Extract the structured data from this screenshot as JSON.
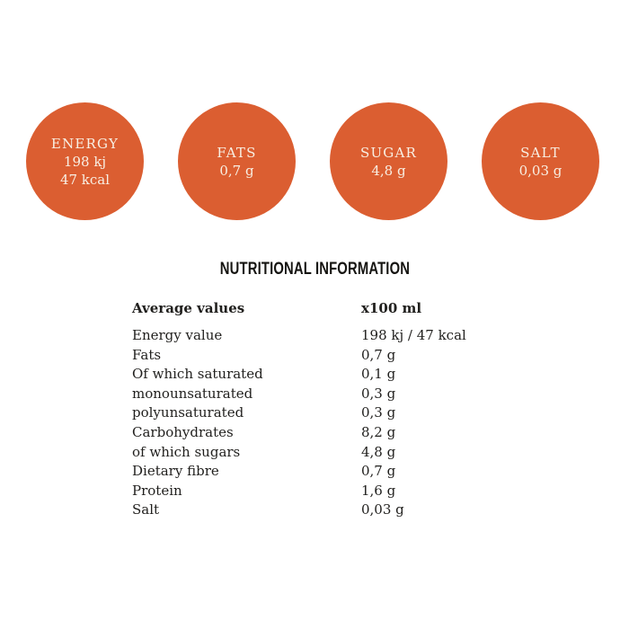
{
  "colors": {
    "badge_background": "#db5e31",
    "badge_text": "#f8efe3",
    "heading_text": "#161512",
    "body_text": "#201f1d",
    "page_background": "#ffffff"
  },
  "circles": [
    {
      "label": "ENERGY",
      "lines": [
        "198 kj",
        "47 kcal"
      ]
    },
    {
      "label": "FATS",
      "lines": [
        "0,7 g"
      ]
    },
    {
      "label": "SUGAR",
      "lines": [
        "4,8 g"
      ]
    },
    {
      "label": "SALT",
      "lines": [
        "0,03 g"
      ]
    }
  ],
  "section_title": "NUTRITIONAL INFORMATION",
  "table": {
    "headers": {
      "label": "Average values",
      "value": "x100 ml"
    },
    "rows": [
      {
        "label": "Energy value",
        "value": "198 kj / 47 kcal"
      },
      {
        "label": "Fats",
        "value": "0,7 g"
      },
      {
        "label": "Of which saturated",
        "value": "0,1 g"
      },
      {
        "label": "monounsaturated",
        "value": "0,3 g"
      },
      {
        "label": "polyunsaturated",
        "value": "0,3 g"
      },
      {
        "label": "Carbohydrates",
        "value": "8,2 g"
      },
      {
        "label": "of which sugars",
        "value": "4,8 g"
      },
      {
        "label": "Dietary fibre",
        "value": "0,7 g"
      },
      {
        "label": "Protein",
        "value": "1,6 g"
      },
      {
        "label": "Salt",
        "value": "0,03 g"
      }
    ]
  }
}
